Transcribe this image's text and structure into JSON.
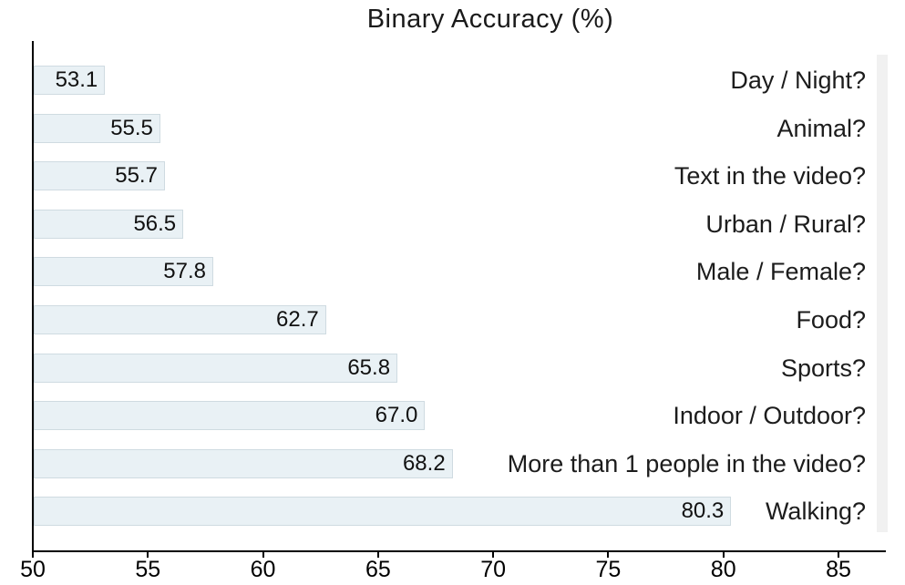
{
  "chart_data": {
    "type": "bar",
    "orientation": "horizontal",
    "title": "Binary Accuracy (%)",
    "categories": [
      "Day / Night?",
      "Animal?",
      "Text in the video?",
      "Urban / Rural?",
      "Male / Female?",
      "Food?",
      "Sports?",
      "Indoor / Outdoor?",
      "More than 1 people in the video?",
      "Walking?"
    ],
    "values": [
      53.1,
      55.5,
      55.7,
      56.5,
      57.8,
      62.7,
      65.8,
      67.0,
      68.2,
      80.3
    ],
    "value_labels": [
      "53.1",
      "55.5",
      "55.7",
      "56.5",
      "57.8",
      "62.7",
      "65.8",
      "67.0",
      "68.2",
      "80.3"
    ],
    "xlabel": "",
    "ylabel": "",
    "xlim": [
      50,
      87
    ],
    "x_ticks": [
      50,
      55,
      60,
      65,
      70,
      75,
      80,
      85
    ],
    "grid": false,
    "legend": null,
    "colors": {
      "bar_fill": "#e9f1f5",
      "bar_border": "#cfdbe1",
      "axis": "#000000",
      "value_text": "#111111",
      "label_text": "#1c1c1c",
      "side_strip": "#f1f1f1"
    }
  }
}
